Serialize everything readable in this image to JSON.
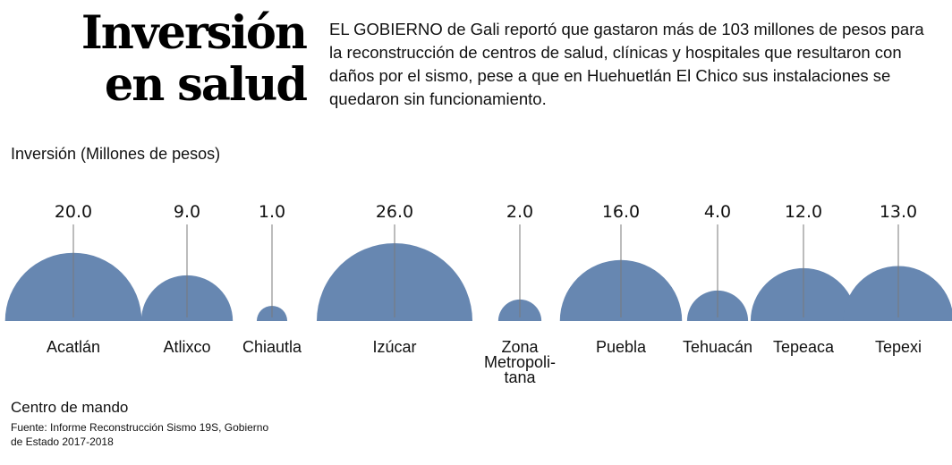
{
  "title": {
    "line1": "Inversión",
    "line2": "en salud"
  },
  "intro": "EL GOBIERNO de Gali reportó que gastaron más de 103 millones de pesos para la reconstrucción de centros de salud, clínicas y hospitales que resultaron con daños por el sismo, pese a que en Huehuetlán El Chico sus instalaciones se quedaron sin funcionamiento.",
  "footer": {
    "label": "Centro de mando",
    "source": "Fuente: Informe Reconstrucción Sismo 19S, Gobierno de Estado 2017-2018"
  },
  "colors": {
    "bubble": "#6787b1",
    "line": "#7a7a7a"
  },
  "chart_data": {
    "type": "bubble",
    "title": "",
    "ylabel": "Inversión (Millones de pesos)",
    "categories": [
      "Acatlán",
      "Atlixco",
      "Chiautla",
      "Izúcar",
      "Zona Metropolitana",
      "Puebla",
      "Tehuacán",
      "Tepeaca",
      "Tepexi"
    ],
    "category_labels": [
      [
        "Acatlán"
      ],
      [
        "Atlixco"
      ],
      [
        "Chiautla"
      ],
      [
        "Izúcar"
      ],
      [
        "Zona",
        "Metropoli-",
        "tana"
      ],
      [
        "Puebla"
      ],
      [
        "Tehuacán"
      ],
      [
        "Tepeaca"
      ],
      [
        "Tepexi"
      ]
    ],
    "values": [
      20.0,
      9.0,
      1.0,
      26.0,
      2.0,
      16.0,
      4.0,
      12.0,
      13.0
    ],
    "value_labels": [
      "20.0",
      "9.0",
      "1.0",
      "26.0",
      "2.0",
      "16.0",
      "4.0",
      "12.0",
      "13.0"
    ]
  }
}
